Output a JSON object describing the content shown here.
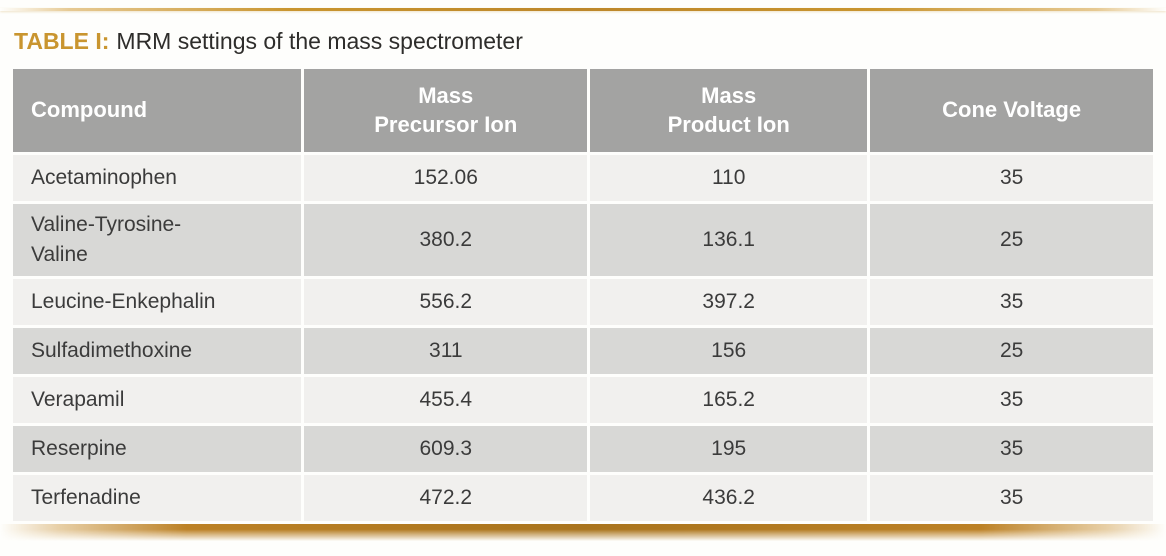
{
  "caption": {
    "label": "TABLE I:",
    "text": "MRM settings of the mass spectrometer"
  },
  "table": {
    "columns": [
      "Compound",
      "Mass\nPrecursor Ion",
      "Mass\nProduct Ion",
      "Cone Voltage"
    ],
    "rows": [
      {
        "compound": "Acetaminophen",
        "precursor": "152.06",
        "product": "110",
        "cone": "35"
      },
      {
        "compound": "Valine-Tyrosine-\nValine",
        "precursor": "380.2",
        "product": "136.1",
        "cone": "25"
      },
      {
        "compound": "Leucine-Enkephalin",
        "precursor": "556.2",
        "product": "397.2",
        "cone": "35"
      },
      {
        "compound": "Sulfadimethoxine",
        "precursor": "311",
        "product": "156",
        "cone": "25"
      },
      {
        "compound": "Verapamil",
        "precursor": "455.4",
        "product": "165.2",
        "cone": "35"
      },
      {
        "compound": "Reserpine",
        "precursor": "609.3",
        "product": "195",
        "cone": "35"
      },
      {
        "compound": "Terfenadine",
        "precursor": "472.2",
        "product": "436.2",
        "cone": "35"
      }
    ]
  },
  "colors": {
    "accent_gold": "#c9952f",
    "rule_gold_dark": "#a9741d",
    "header_bg": "#a3a3a2",
    "header_text": "#ffffff",
    "row_light": "#f1f0ee",
    "row_dark": "#d8d8d6",
    "body_text": "#3b3b3b",
    "caption_text": "#2e2d2b"
  },
  "chart_data": {
    "type": "table",
    "title": "TABLE I: MRM settings of the mass spectrometer",
    "columns": [
      "Compound",
      "Mass Precursor Ion",
      "Mass Product Ion",
      "Cone Voltage"
    ],
    "rows": [
      [
        "Acetaminophen",
        152.06,
        110,
        35
      ],
      [
        "Valine-Tyrosine-Valine",
        380.2,
        136.1,
        25
      ],
      [
        "Leucine-Enkephalin",
        556.2,
        397.2,
        35
      ],
      [
        "Sulfadimethoxine",
        311,
        156,
        25
      ],
      [
        "Verapamil",
        455.4,
        165.2,
        35
      ],
      [
        "Reserpine",
        609.3,
        195,
        35
      ],
      [
        "Terfenadine",
        472.2,
        436.2,
        35
      ]
    ]
  }
}
